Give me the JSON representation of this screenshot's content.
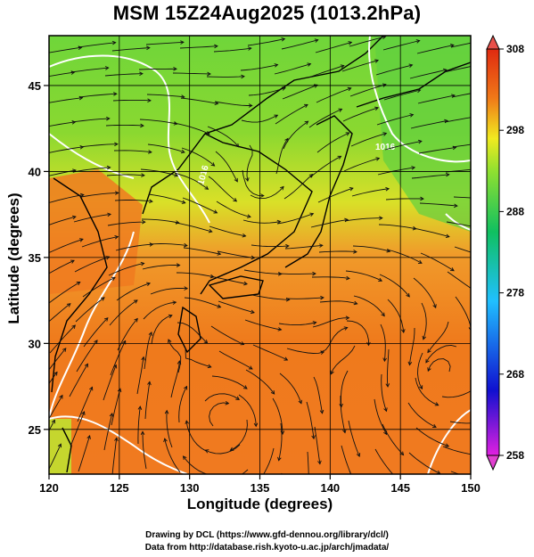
{
  "title": "MSM 15Z24Aug2025 (1013.2hPa)",
  "x_axis": {
    "label": "Longitude (degrees)",
    "range": [
      120,
      150
    ],
    "ticks": [
      "120",
      "125",
      "130",
      "135",
      "140",
      "145",
      "150"
    ]
  },
  "y_axis": {
    "label": "Latitude  (degrees)",
    "range": [
      22.4,
      47.9
    ],
    "ticks": [
      "25",
      "30",
      "35",
      "40",
      "45"
    ]
  },
  "colorbar": {
    "range": [
      258,
      308
    ],
    "ticks": [
      "258",
      "268",
      "278",
      "288",
      "298",
      "308"
    ],
    "colors": [
      "#e020e0",
      "#1010d0",
      "#20c0ff",
      "#10c060",
      "#90e030",
      "#f0ea20",
      "#f07818",
      "#e02a10"
    ]
  },
  "contour_labels": [
    "1016",
    "1016"
  ],
  "credits": {
    "line1": "Drawing by DCL (https://www.gfd-dennou.org/library/dcl/)",
    "line2": "Data from http://database.rish.kyoto-u.ac.jp/arch/jmadata/"
  }
}
